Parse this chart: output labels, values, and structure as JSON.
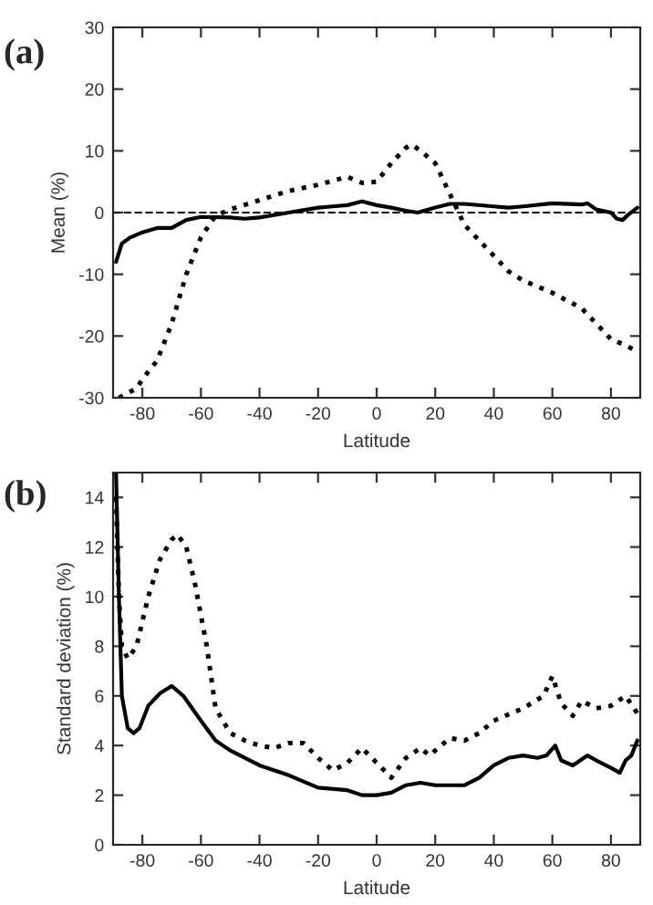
{
  "chart_data": [
    {
      "type": "line",
      "annotations": [
        "(a)"
      ],
      "xlabel": "Latitude",
      "ylabel": "Mean (%)",
      "xlim": [
        -90,
        90
      ],
      "ylim": [
        -30,
        30
      ],
      "xticks": [
        -80,
        -60,
        -40,
        -20,
        0,
        20,
        40,
        60,
        80
      ],
      "yticks": [
        -30,
        -20,
        -10,
        0,
        10,
        20,
        30
      ],
      "grid": false,
      "legend": false,
      "ref_lines": [
        {
          "axis": "y",
          "value": 0,
          "color": "#000000",
          "line_style": "dashed"
        }
      ],
      "series": [
        {
          "color": "#000000",
          "line_style": "solid",
          "x": [
            -89,
            -87,
            -84,
            -80,
            -75,
            -70,
            -65,
            -60,
            -50,
            -45,
            -40,
            -30,
            -20,
            -15,
            -10,
            -5,
            0,
            5,
            10,
            14,
            20,
            25,
            30,
            40,
            45,
            50,
            60,
            70,
            72,
            75,
            80,
            82,
            84,
            86,
            89
          ],
          "values": [
            -8,
            -5,
            -4,
            -3.2,
            -2.5,
            -2.5,
            -1.2,
            -0.7,
            -0.8,
            -1,
            -0.8,
            0,
            0.8,
            1,
            1.2,
            1.8,
            1.2,
            0.8,
            0.3,
            0,
            0.8,
            1.4,
            1.4,
            1,
            0.8,
            1,
            1.5,
            1.3,
            1.5,
            0.5,
            0,
            -1,
            -1.2,
            -0.3,
            0.8
          ]
        },
        {
          "color": "#000000",
          "line_style": "dotted",
          "x": [
            -88,
            -82,
            -80,
            -75,
            -70,
            -65,
            -60,
            -55,
            -50,
            -40,
            -30,
            -20,
            -10,
            -5,
            0,
            5,
            10,
            12,
            15,
            20,
            25,
            28,
            30,
            40,
            45,
            50,
            60,
            70,
            75,
            80,
            85,
            89
          ],
          "values": [
            -30,
            -28.5,
            -27,
            -24,
            -18,
            -10,
            -4,
            -0.5,
            0.5,
            2,
            3.5,
            4.5,
            5.8,
            4.8,
            5,
            8,
            10.5,
            11,
            10,
            8,
            3,
            0,
            -2,
            -7,
            -9.5,
            -11,
            -13,
            -15.5,
            -18,
            -20.5,
            -21.5,
            -22.5
          ]
        }
      ]
    },
    {
      "type": "line",
      "annotations": [
        "(b)"
      ],
      "xlabel": "Latitude",
      "ylabel": "Standard deviation (%)",
      "xlim": [
        -90,
        90
      ],
      "ylim": [
        0,
        15
      ],
      "xticks": [
        -80,
        -60,
        -40,
        -20,
        0,
        20,
        40,
        60,
        80
      ],
      "yticks": [
        0,
        2,
        4,
        6,
        8,
        10,
        12,
        14
      ],
      "grid": false,
      "legend": false,
      "series": [
        {
          "color": "#000000",
          "line_style": "solid",
          "x": [
            -89,
            -88,
            -87,
            -85,
            -83,
            -81,
            -78,
            -74,
            -70,
            -66,
            -60,
            -55,
            -50,
            -40,
            -30,
            -20,
            -10,
            -5,
            0,
            5,
            10,
            15,
            20,
            30,
            35,
            40,
            45,
            50,
            55,
            58,
            61,
            63,
            67,
            72,
            75,
            80,
            83,
            85,
            87,
            89
          ],
          "values": [
            15,
            10,
            6,
            4.7,
            4.5,
            4.7,
            5.6,
            6.1,
            6.4,
            6,
            5,
            4.2,
            3.8,
            3.2,
            2.8,
            2.3,
            2.2,
            2.0,
            2.0,
            2.1,
            2.4,
            2.5,
            2.4,
            2.4,
            2.7,
            3.2,
            3.5,
            3.6,
            3.5,
            3.6,
            4.0,
            3.4,
            3.2,
            3.6,
            3.4,
            3.1,
            2.9,
            3.4,
            3.6,
            4.2
          ]
        },
        {
          "color": "#000000",
          "line_style": "dotted",
          "x": [
            -89,
            -88,
            -87,
            -85,
            -82,
            -78,
            -74,
            -70,
            -68,
            -65,
            -62,
            -58,
            -55,
            -50,
            -45,
            -40,
            -35,
            -30,
            -25,
            -20,
            -15,
            -10,
            -5,
            0,
            5,
            10,
            15,
            18,
            25,
            30,
            35,
            40,
            50,
            57,
            60,
            63,
            67,
            70,
            75,
            80,
            85,
            89
          ],
          "values": [
            14,
            10,
            8,
            7.5,
            8,
            10,
            11.5,
            12.3,
            12.5,
            12,
            10.5,
            8,
            5.5,
            4.5,
            4.2,
            4,
            3.9,
            4.1,
            4.1,
            3.5,
            3.0,
            3.3,
            3.9,
            3.3,
            2.7,
            3.5,
            3.9,
            3.6,
            4.3,
            4.2,
            4.5,
            5,
            5.5,
            6.0,
            6.8,
            5.7,
            5.2,
            5.8,
            5.5,
            5.6,
            6.0,
            5.3
          ]
        }
      ]
    }
  ]
}
